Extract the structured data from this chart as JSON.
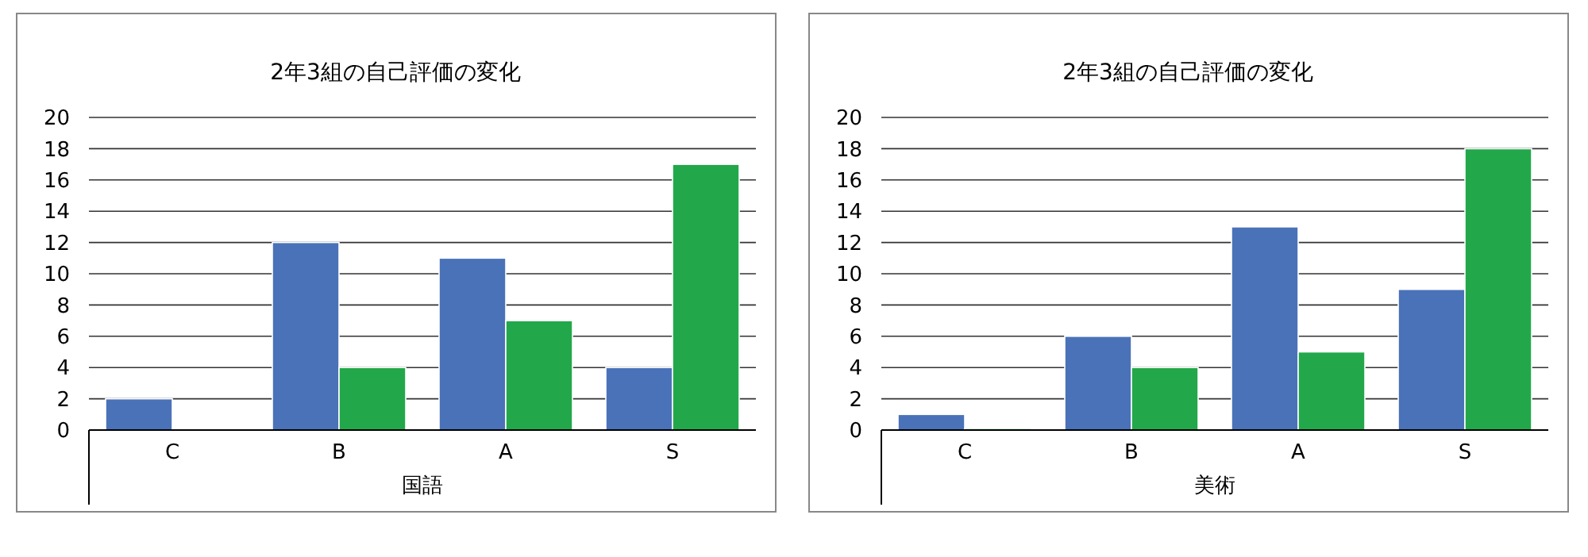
{
  "chart_data": [
    {
      "type": "bar",
      "title": "2年3組の自己評価の変化",
      "xlabel": "国語",
      "categories": [
        "C",
        "B",
        "A",
        "S"
      ],
      "series": [
        {
          "color": "#4a72b8",
          "values": [
            2,
            12,
            11,
            4
          ]
        },
        {
          "color": "#22a84a",
          "values": [
            null,
            4,
            7,
            17
          ]
        }
      ],
      "ylim": [
        0,
        20
      ],
      "yticks": [
        0,
        2,
        4,
        6,
        8,
        10,
        12,
        14,
        16,
        18,
        20
      ],
      "grid": "y"
    },
    {
      "type": "bar",
      "title": "2年3組の自己評価の変化",
      "xlabel": "美術",
      "categories": [
        "C",
        "B",
        "A",
        "S"
      ],
      "series": [
        {
          "color": "#4a72b8",
          "values": [
            1,
            6,
            13,
            9
          ]
        },
        {
          "color": "#22a84a",
          "values": [
            0,
            4,
            5,
            18
          ]
        }
      ],
      "ylim": [
        0,
        20
      ],
      "yticks": [
        0,
        2,
        4,
        6,
        8,
        10,
        12,
        14,
        16,
        18,
        20
      ],
      "grid": "y"
    }
  ]
}
